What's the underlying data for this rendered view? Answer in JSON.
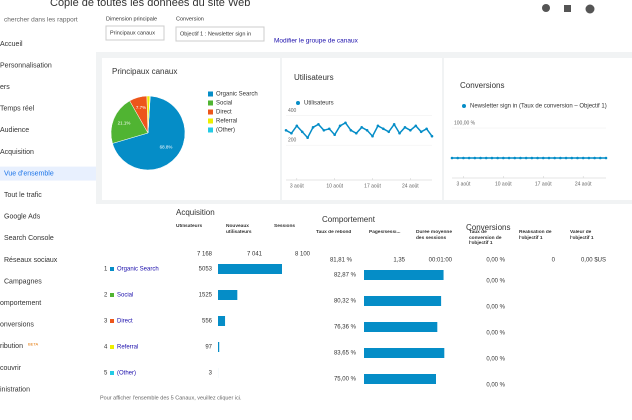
{
  "header": {
    "title": "Copie de toutes les données du site Web",
    "search": "chercher dans les rapport"
  },
  "sidebar": [
    "Accueil",
    "Personnalisation",
    "ers",
    "Temps réel",
    "Audience",
    "Acquisition",
    "Vue d'ensemble",
    "Tout le trafic",
    "Google Ads",
    "Search Console",
    "Réseaux sociaux",
    "Campagnes",
    "omportement",
    "onversions",
    "ribution",
    "couvrir",
    "inistration"
  ],
  "sidebar_badge": "BETA",
  "controls": {
    "dimension_label": "Dimension principale",
    "dimension": "Principaux canaux",
    "conversion_label": "Conversion",
    "conversion": "Objectif 1 : Newsletter sign in",
    "link": "Modifier le groupe de canaux"
  },
  "pie": {
    "type": "pie",
    "title": "Principaux canaux",
    "categories": [
      "Organic Search",
      "Social",
      "Direct",
      "Referral",
      "(Other)"
    ],
    "values": [
      68.8,
      21.1,
      7.7,
      1.3,
      0.1
    ],
    "value_labels": [
      "68.8%",
      "21.1%",
      "7.7%",
      null,
      null
    ],
    "colors": [
      "#058dc7",
      "#50b432",
      "#ed561b",
      "#edef00",
      "#24cbe5"
    ]
  },
  "users_chart": {
    "type": "line",
    "title": "Utilisateurs",
    "series": [
      {
        "name": "Utilisateurs",
        "color": "#058dc7",
        "values": [
          300,
          280,
          330,
          290,
          250,
          320,
          340,
          300,
          310,
          270,
          330,
          350,
          300,
          280,
          320,
          300,
          260,
          330,
          310,
          290,
          340,
          280,
          320,
          300,
          330,
          290,
          310,
          260
        ]
      }
    ],
    "xlim": [
      0,
      27
    ],
    "xticks": [
      {
        "value": 2,
        "label": "3 août"
      },
      {
        "value": 9,
        "label": "10 août"
      },
      {
        "value": 16,
        "label": "17 août"
      },
      {
        "value": 23,
        "label": "24 août"
      }
    ],
    "ylim": [
      100,
      450
    ],
    "yticks": [
      400,
      200
    ]
  },
  "conv_chart": {
    "type": "line",
    "title": "Conversions",
    "series": [
      {
        "name": "Newsletter sign in (Taux de conversion – Objectif 1)",
        "color": "#058dc7",
        "values": [
          0,
          0,
          0,
          0,
          0,
          0,
          0,
          0,
          0,
          0,
          0,
          0,
          0,
          0,
          0,
          0,
          0,
          0,
          0,
          0,
          0,
          0,
          0,
          0,
          0,
          0,
          0,
          0
        ]
      }
    ],
    "xlim": [
      0,
      27
    ],
    "xticks": [
      {
        "value": 2,
        "label": "3 août"
      },
      {
        "value": 9,
        "label": "10 août"
      },
      {
        "value": 16,
        "label": "17 août"
      },
      {
        "value": 23,
        "label": "24 août"
      }
    ],
    "ylim": [
      0,
      100
    ],
    "yticks": [
      {
        "value": 100,
        "label": "100,00 %"
      }
    ]
  },
  "table": {
    "groups": [
      "Acquisition",
      "Comportement",
      "Conversions"
    ],
    "columns": [
      "Utilisateurs",
      "Nouveaux utilisateurs",
      "Sessions",
      "Taux de rebond",
      "Pages/sessi...",
      "Durée moyenne des sessions",
      "Taux de conversion de l'objectif 1",
      "Réalisation de l'objectif 1",
      "Valeur de l'objectif 1"
    ],
    "totals": [
      "7 168",
      "7 041",
      "8 100",
      "81,81 %",
      "1,35",
      "00:01:00",
      "0,00 %",
      "0",
      "0,00 $US"
    ],
    "rows": [
      {
        "num": "1",
        "name": "Organic Search",
        "users": 5053,
        "bounce": {
          "value": 82.87,
          "label": "82,87 %"
        },
        "conv": "0,00 %"
      },
      {
        "num": "2",
        "name": "Social",
        "users": 1525,
        "bounce": {
          "value": 80.32,
          "label": "80,32 %"
        },
        "conv": "0,00 %"
      },
      {
        "num": "3",
        "name": "Direct",
        "users": 556,
        "bounce": {
          "value": 76.36,
          "label": "76,36 %"
        },
        "conv": "0,00 %"
      },
      {
        "num": "4",
        "name": "Referral",
        "users": 97,
        "bounce": {
          "value": 83.65,
          "label": "83,65 %"
        },
        "conv": "0,00 %"
      },
      {
        "num": "5",
        "name": "(Other)",
        "users": 3,
        "bounce": {
          "value": 75.0,
          "label": "75,00 %"
        },
        "conv": "0,00 %"
      }
    ],
    "footer": "Pour afficher l'ensemble des 5 Canaux, veuillez cliquer ici."
  }
}
